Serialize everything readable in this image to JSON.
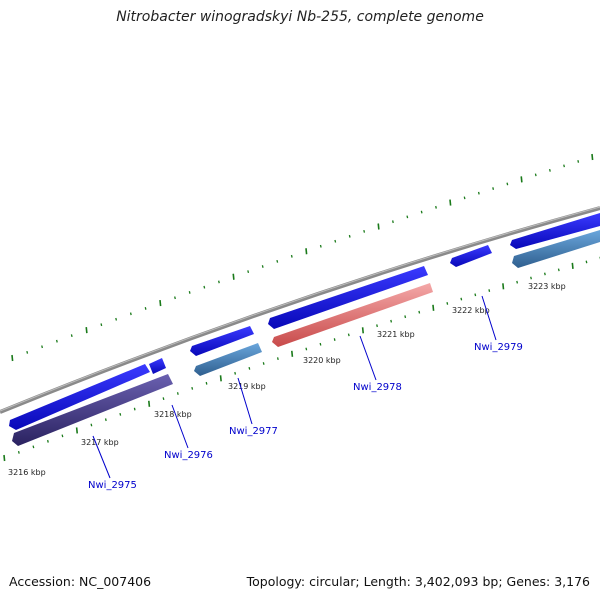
{
  "title": "Nitrobacter winogradskyi Nb-255, complete genome",
  "footer": {
    "accession": "Accession: NC_007406",
    "summary": "Topology: circular; Length: 3,402,093 bp; Genes: 3,176"
  },
  "colors": {
    "backbone": "#7a7a7a",
    "forward_gene": "#1a1aee",
    "steelblue_gene": "#4a86c0",
    "purple_gene": "#4a3f8f",
    "pink_gene": "#e88a8a",
    "tick": "#1a7a1a",
    "label": "#0000cc"
  },
  "ticks": [
    {
      "label": "3216 kbp"
    },
    {
      "label": "3217 kbp"
    },
    {
      "label": "3218 kbp"
    },
    {
      "label": "3219 kbp"
    },
    {
      "label": "3220 kbp"
    },
    {
      "label": "3221 kbp"
    },
    {
      "label": "3222 kbp"
    },
    {
      "label": "3223 kbp"
    }
  ],
  "gene_labels": [
    {
      "label": "Nwi_2975"
    },
    {
      "label": "Nwi_2976"
    },
    {
      "label": "Nwi_2977"
    },
    {
      "label": "Nwi_2978"
    },
    {
      "label": "Nwi_2979"
    }
  ]
}
